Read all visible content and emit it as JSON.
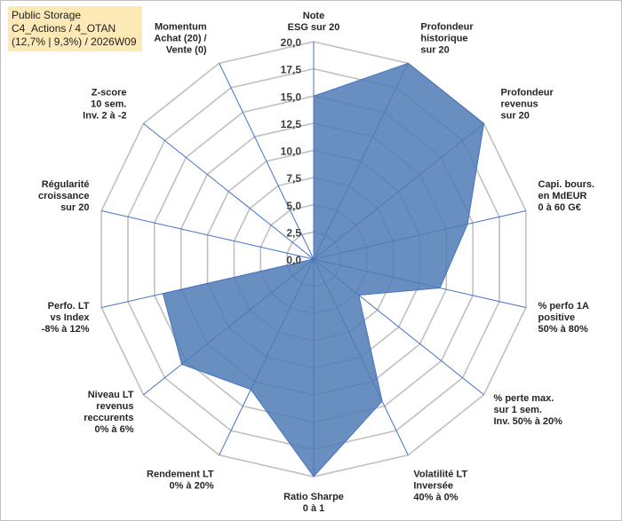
{
  "title": {
    "lines": [
      "Public Storage",
      "C4_Actions / 4_OTAN",
      "(12,7% | 9,3%) / 2026W09"
    ]
  },
  "chart_data": {
    "type": "radar",
    "r_min": 0,
    "r_max": 20,
    "ticks": [
      "0,0",
      "2,5",
      "5,0",
      "7,5",
      "10,0",
      "12,5",
      "15,0",
      "17,5",
      "20,0"
    ],
    "tick_values": [
      0,
      2.5,
      5,
      7.5,
      10,
      12.5,
      15,
      17.5,
      20
    ],
    "axes": [
      {
        "label": "Note\nESG sur 20",
        "value": 15.0
      },
      {
        "label": "Profondeur\nhistorique\nsur 20",
        "value": 20.0
      },
      {
        "label": "Profondeur\nrevenus\nsur 20",
        "value": 20.0
      },
      {
        "label": "Capi. bours.\nen MdEUR\n0 à 60 G€",
        "value": 14.5
      },
      {
        "label": "% perfo 1A\npositive\n50% à 80%",
        "value": 11.9
      },
      {
        "label": "% perte max.\nsur 1 sem.\nInv. 50% à 20%",
        "value": 5.3
      },
      {
        "label": "Volatilité LT\nInversée\n40% à 0%",
        "value": 14.5
      },
      {
        "label": "Ratio Sharpe\n0 à 1",
        "value": 20.0
      },
      {
        "label": "Rendement LT\n0% à 20%",
        "value": 13.3
      },
      {
        "label": "Niveau LT\nrevenus\nreccurents\n0% à 6%",
        "value": 15.5
      },
      {
        "label": "Perfo. LT\nvs Index\n-8% à 12%",
        "value": 14.2
      },
      {
        "label": "Régularité\ncroissance\nsur 20",
        "value": 0.0
      },
      {
        "label": "Z-score\n10 sem.\nInv. 2 à -2",
        "value": 0.0
      },
      {
        "label": "Momentum\nAchat (20) /\nVente (0)",
        "value": 0.0
      }
    ],
    "series": [
      {
        "name": "Public Storage",
        "color": "#4f7bb5"
      }
    ]
  },
  "colors": {
    "fill": "#4f7bb5",
    "fill_opacity": "0.85",
    "stroke": "#4472c4",
    "grid": "#c0c0c0",
    "spoke": "#4472c4",
    "title_bg": "#fde9b6"
  }
}
